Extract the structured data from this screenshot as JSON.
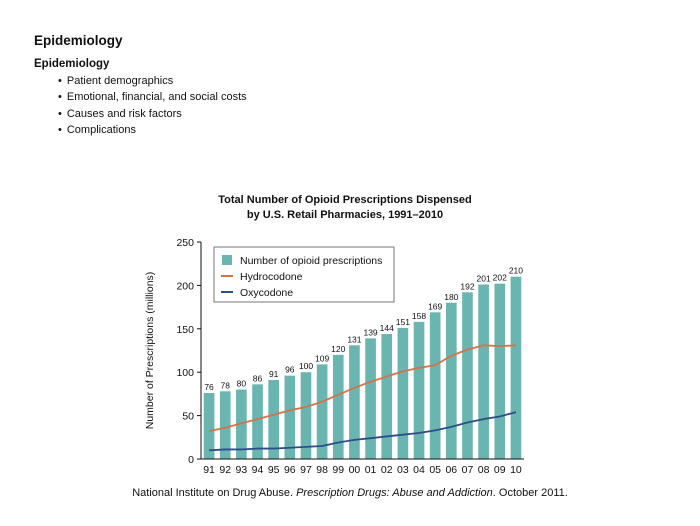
{
  "page": {
    "title": "Epidemiology",
    "section_heading": "Epidemiology",
    "bullets": [
      "Patient demographics",
      "Emotional, financial, and social costs",
      "Causes and risk factors",
      "Complications"
    ]
  },
  "citation": {
    "prefix": "National Institute on Drug Abuse. ",
    "title": "Prescription Drugs: Abuse and Addiction",
    "suffix": ". October 2011."
  },
  "chart_data": {
    "type": "bar",
    "title_line1": "Total Number of Opioid Prescriptions Dispensed",
    "title_line2": "by U.S. Retail Pharmacies, 1991–2010",
    "xlabel": "",
    "ylabel": "Number of Prescriptions (millions)",
    "ylim": [
      0,
      250
    ],
    "yticks": [
      0,
      50,
      100,
      150,
      200,
      250
    ],
    "grid": false,
    "legend_position": "top-left",
    "categories": [
      "91",
      "92",
      "93",
      "94",
      "95",
      "96",
      "97",
      "98",
      "99",
      "00",
      "01",
      "02",
      "03",
      "04",
      "05",
      "06",
      "07",
      "08",
      "09",
      "10"
    ],
    "bars": {
      "name": "Number of opioid prescriptions",
      "color": "#6bb5b1",
      "values": [
        76,
        78,
        80,
        86,
        91,
        96,
        100,
        109,
        120,
        131,
        139,
        144,
        151,
        158,
        169,
        180,
        192,
        201,
        202,
        210
      ]
    },
    "lines": [
      {
        "name": "Hydrocodone",
        "color": "#d2734a",
        "values": [
          32,
          36,
          41,
          46,
          51,
          56,
          60,
          66,
          74,
          82,
          89,
          95,
          101,
          105,
          108,
          119,
          126,
          131,
          130,
          131
        ]
      },
      {
        "name": "Oxycodone",
        "color": "#2f4d87",
        "values": [
          10,
          11,
          11,
          12,
          12,
          13,
          14,
          15,
          19,
          22,
          24,
          26,
          28,
          30,
          33,
          37,
          42,
          46,
          49,
          54
        ]
      }
    ]
  }
}
